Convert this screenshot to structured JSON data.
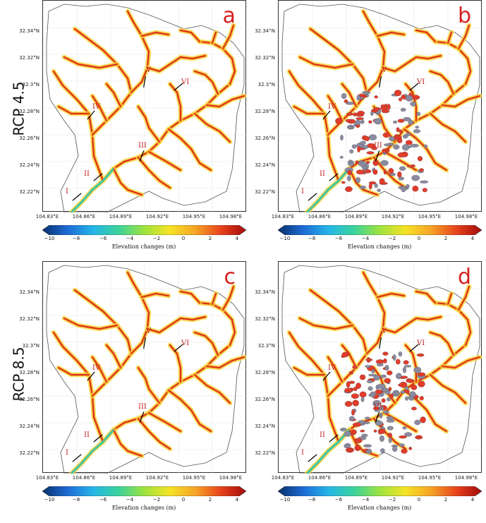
{
  "row_labels": [
    "RCP 4.5",
    "RCP 8.5"
  ],
  "panels": [
    "a",
    "b",
    "c",
    "d"
  ],
  "lat_ticks": [
    "32.34°N",
    "32.32°N",
    "32.3°N",
    "32.28°N",
    "32.26°N",
    "32.24°N",
    "32.22°N"
  ],
  "lon_ticks": [
    "104.83°E",
    "104.86°E",
    "104.89°E",
    "104.92°E",
    "104.95°E",
    "104.98°E"
  ],
  "sections": [
    "I",
    "II",
    "III",
    "IV",
    "V",
    "VI"
  ],
  "colorbar": {
    "title": "Elevation changes (m)",
    "ticks": [
      "−10",
      "−8",
      "−6",
      "−4",
      "−2",
      "0",
      "2",
      "4"
    ]
  },
  "colors": {
    "panel_letter": "#d62020",
    "section_label": "#c62020"
  }
}
